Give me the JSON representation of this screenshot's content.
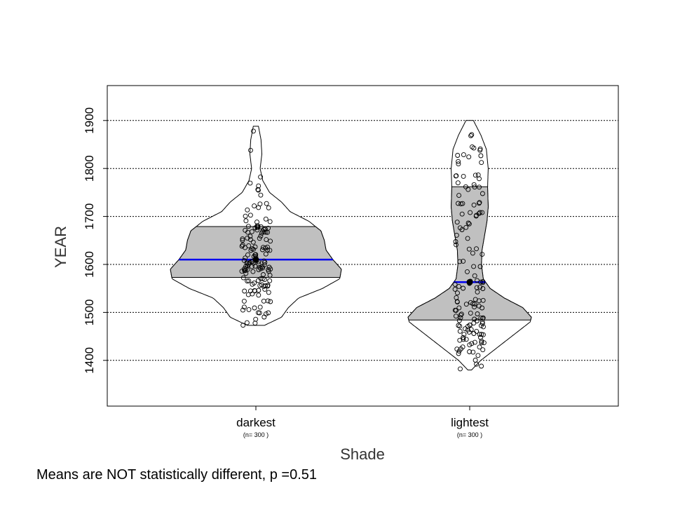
{
  "chart_data": {
    "type": "violin",
    "xlabel": "Shade",
    "ylabel": "YEAR",
    "ylim": [
      1300,
      1970
    ],
    "yticks": [
      1400,
      1500,
      1600,
      1700,
      1800,
      1900
    ],
    "grid": "horizontal dotted",
    "groups": [
      {
        "category": "darkest",
        "n_label": "(n= 300 )",
        "mean": 1610,
        "q1": 1573,
        "q3": 1679,
        "min": 1473,
        "max": 1888,
        "density": [
          [
            1473,
            0.1
          ],
          [
            1490,
            0.3
          ],
          [
            1510,
            0.38
          ],
          [
            1530,
            0.5
          ],
          [
            1550,
            0.78
          ],
          [
            1570,
            0.98
          ],
          [
            1590,
            1.0
          ],
          [
            1610,
            0.9
          ],
          [
            1630,
            0.82
          ],
          [
            1650,
            0.8
          ],
          [
            1670,
            0.76
          ],
          [
            1690,
            0.62
          ],
          [
            1710,
            0.4
          ],
          [
            1730,
            0.3
          ],
          [
            1750,
            0.16
          ],
          [
            1775,
            0.08
          ],
          [
            1800,
            0.05
          ],
          [
            1830,
            0.07
          ],
          [
            1860,
            0.06
          ],
          [
            1888,
            0.03
          ]
        ]
      },
      {
        "category": "lightest",
        "n_label": "(n= 300 )",
        "mean": 1563,
        "q1": 1484,
        "q3": 1762,
        "min": 1380,
        "max": 1900,
        "density": [
          [
            1380,
            0.03
          ],
          [
            1400,
            0.18
          ],
          [
            1420,
            0.38
          ],
          [
            1440,
            0.58
          ],
          [
            1460,
            0.78
          ],
          [
            1480,
            0.98
          ],
          [
            1490,
            1.0
          ],
          [
            1510,
            0.86
          ],
          [
            1530,
            0.56
          ],
          [
            1550,
            0.33
          ],
          [
            1570,
            0.22
          ],
          [
            1600,
            0.19
          ],
          [
            1630,
            0.2
          ],
          [
            1660,
            0.24
          ],
          [
            1690,
            0.28
          ],
          [
            1720,
            0.3
          ],
          [
            1760,
            0.29
          ],
          [
            1800,
            0.3
          ],
          [
            1840,
            0.27
          ],
          [
            1870,
            0.18
          ],
          [
            1900,
            0.06
          ]
        ]
      }
    ],
    "footnote": "Means are NOT statistically different,  p =0.51"
  },
  "colors": {
    "iqr_fill": "#c0c0c0",
    "mean_line": "#0000ee",
    "outline": "#000000"
  }
}
